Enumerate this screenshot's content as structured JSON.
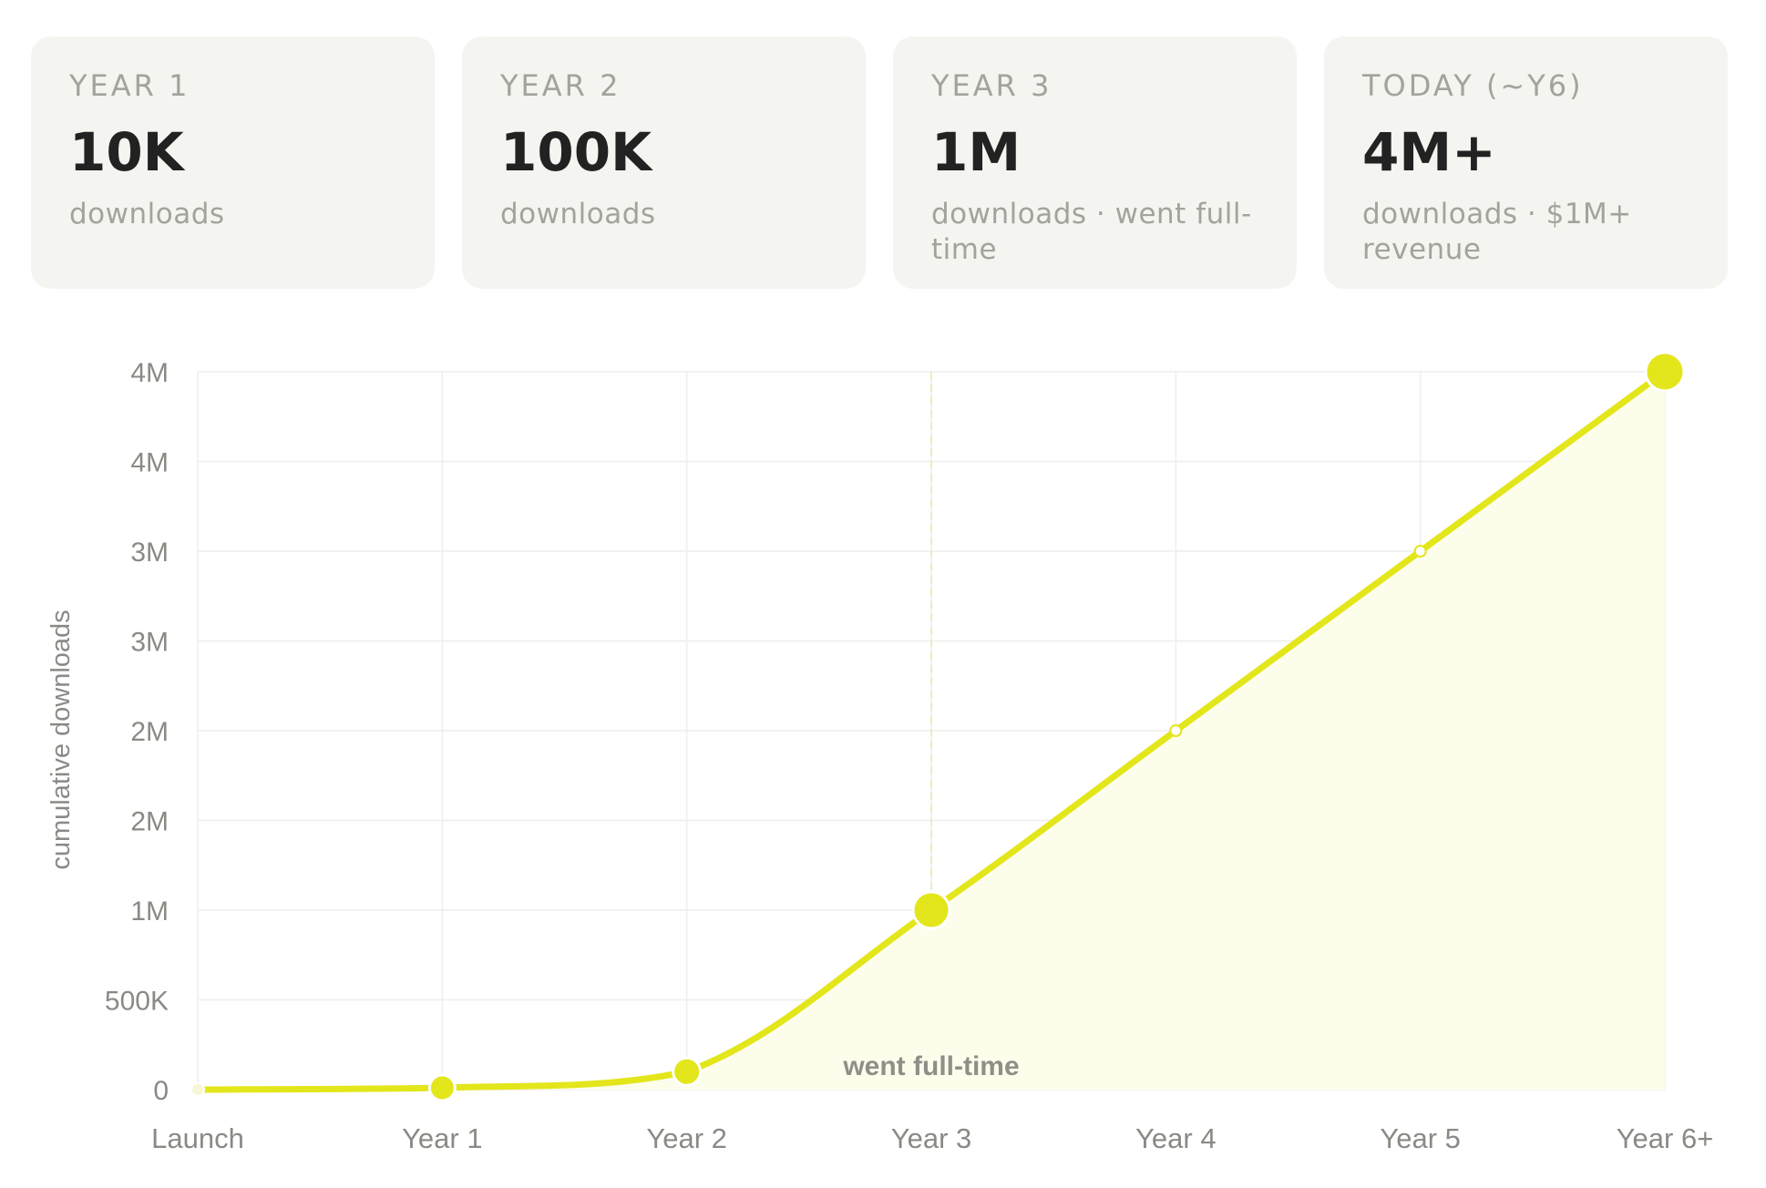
{
  "cards": [
    {
      "label": "YEAR 1",
      "value": "10K",
      "sub": "downloads"
    },
    {
      "label": "YEAR 2",
      "value": "100K",
      "sub": "downloads"
    },
    {
      "label": "YEAR 3",
      "value": "1M",
      "sub": "downloads · went full-time"
    },
    {
      "label": "TODAY (~Y6)",
      "value": "4M+",
      "sub": "downloads · $1M+ revenue"
    }
  ],
  "chart_data": {
    "type": "line",
    "title": "",
    "xlabel": "",
    "ylabel": "cumulative downloads",
    "categories": [
      "Launch",
      "Year 1",
      "Year 2",
      "Year 3",
      "Year 4",
      "Year 5",
      "Year 6+"
    ],
    "series": [
      {
        "values": [
          0,
          10000,
          100000,
          1000000,
          2000000,
          3000000,
          4000000
        ]
      }
    ],
    "ylim": [
      0,
      4000000
    ],
    "yticks": [
      0,
      500000,
      1000000,
      1500000,
      2000000,
      2500000,
      3000000,
      3500000,
      4000000
    ],
    "ytick_labels": [
      "0",
      "500K",
      "1M",
      "2M",
      "2M",
      "3M",
      "3M",
      "4M",
      "4M"
    ],
    "grid": true,
    "annotation": {
      "x": "Year 3",
      "text": "went full-time"
    },
    "colors": {
      "line": "#e3e61a",
      "fill": "#fdfdec",
      "marker_hollow": "#ffffff",
      "grid": "#eeeeec",
      "tick_text": "#8a8a85",
      "annotation_text": "#8f8f88"
    }
  }
}
